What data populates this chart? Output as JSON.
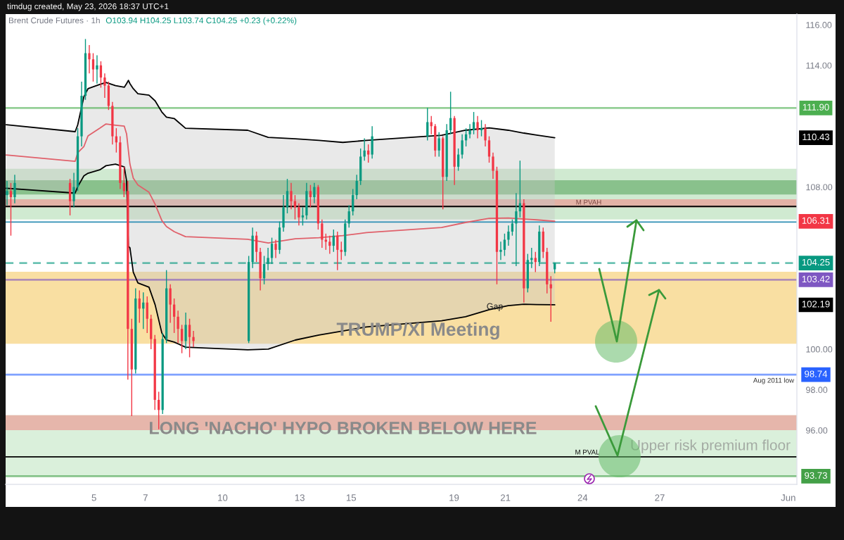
{
  "chart_data": {
    "type": "candlestick",
    "title": "Brent Crude Futures · 1h",
    "annotations": [
      "timdug created, May 23, 2026 18:37 UTC+1",
      "O103.94 H104.25 L103.74 C104.25 +0.23 (+0.22%)",
      "TRUMP/XI Meeting",
      {
        "text": "LONG 'NACHO' HYPO BROKEN BELOW HERE",
        "x": "2026-05-14T16:14",
        "y": 96.04
      },
      "Upper risk premium floor",
      {
        "text": "Gap",
        "x": "2026-05-20T14:05",
        "y": 102.08
      },
      "Aug 2011 low",
      "M PVAH",
      "M PVAL",
      "110.43",
      "106.31",
      "102.19"
    ],
    "x": [
      "2026-05-01T14:48",
      "2026-05-01T18:24",
      "2026-05-01T22:00",
      "2026-05-04T01:36",
      "2026-05-04T05:12",
      "2026-05-04T08:48",
      "2026-05-04T12:24",
      "2026-05-04T16:00",
      "2026-05-04T19:36",
      "2026-05-04T23:12",
      "2026-05-05T02:48",
      "2026-05-05T06:24",
      "2026-05-05T10:00",
      "2026-05-05T13:36",
      "2026-05-05T17:12",
      "2026-05-05T20:48",
      "2026-05-06T00:24",
      "2026-05-06T04:00",
      "2026-05-06T07:36",
      "2026-05-06T11:12",
      "2026-05-06T14:48",
      "2026-05-06T18:24",
      "2026-05-06T22:00",
      "2026-05-07T01:36",
      "2026-05-07T05:12",
      "2026-05-07T08:48",
      "2026-05-07T12:24",
      "2026-05-07T16:00",
      "2026-05-07T19:36",
      "2026-05-07T23:12",
      "2026-05-08T02:48",
      "2026-05-08T06:24",
      "2026-05-08T10:00",
      "2026-05-08T13:36",
      "2026-05-08T17:12",
      "2026-05-08T20:48",
      "2026-05-11T00:24",
      "2026-05-11T04:00",
      "2026-05-11T07:36",
      "2026-05-11T11:12",
      "2026-05-11T14:48",
      "2026-05-11T18:24",
      "2026-05-11T22:00",
      "2026-05-12T01:36",
      "2026-05-12T05:12",
      "2026-05-12T08:48",
      "2026-05-12T12:24",
      "2026-05-12T16:00",
      "2026-05-12T19:36",
      "2026-05-12T23:12",
      "2026-05-13T02:48",
      "2026-05-13T06:24",
      "2026-05-13T10:00",
      "2026-05-13T13:36",
      "2026-05-13T17:12",
      "2026-05-13T20:48",
      "2026-05-14T00:24",
      "2026-05-14T04:00",
      "2026-05-14T07:36",
      "2026-05-14T11:12",
      "2026-05-14T14:48",
      "2026-05-14T18:24",
      "2026-05-14T22:00",
      "2026-05-15T01:36",
      "2026-05-15T05:12",
      "2026-05-15T08:48",
      "2026-05-15T12:24",
      "2026-05-15T16:00",
      "2026-05-15T19:36",
      "2026-05-17T23:12",
      "2026-05-18T02:48",
      "2026-05-18T06:24",
      "2026-05-18T10:00",
      "2026-05-18T13:36",
      "2026-05-18T17:12",
      "2026-05-18T20:48",
      "2026-05-19T00:24",
      "2026-05-19T04:00",
      "2026-05-19T07:36",
      "2026-05-19T11:12",
      "2026-05-19T14:48",
      "2026-05-19T18:24",
      "2026-05-19T22:00",
      "2026-05-20T01:36",
      "2026-05-20T05:12",
      "2026-05-20T08:48",
      "2026-05-20T12:24",
      "2026-05-20T16:00",
      "2026-05-20T19:36",
      "2026-05-20T23:12",
      "2026-05-21T02:48",
      "2026-05-21T06:24",
      "2026-05-21T10:00",
      "2026-05-21T13:36",
      "2026-05-21T17:12",
      "2026-05-21T20:48",
      "2026-05-22T00:24",
      "2026-05-22T04:00",
      "2026-05-22T07:36",
      "2026-05-22T11:12",
      "2026-05-22T14:48",
      "2026-05-22T18:24",
      "2026-05-22T22:00"
    ],
    "ohlc": [
      [
        107.6,
        108.3,
        107.1,
        107.8
      ],
      [
        107.8,
        108.2,
        105.6,
        107.5
      ],
      [
        107.5,
        108.6,
        107.2,
        108.2
      ],
      [
        108.2,
        108.4,
        106.6,
        107.3
      ],
      [
        107.3,
        108.7,
        107.0,
        108.0
      ],
      [
        108.0,
        110.9,
        107.8,
        110.5
      ],
      [
        110.5,
        113.2,
        110.0,
        112.5
      ],
      [
        112.5,
        115.3,
        112.3,
        114.6
      ],
      [
        114.6,
        115.0,
        113.6,
        114.3
      ],
      [
        114.3,
        114.6,
        113.2,
        113.8
      ],
      [
        113.8,
        114.5,
        113.1,
        114.0
      ],
      [
        114.0,
        114.2,
        112.9,
        113.4
      ],
      [
        113.4,
        113.6,
        112.4,
        113.0
      ],
      [
        113.0,
        113.2,
        111.8,
        112.0
      ],
      [
        112.0,
        112.2,
        110.1,
        110.5
      ],
      [
        110.5,
        110.9,
        109.7,
        110.2
      ],
      [
        110.2,
        110.5,
        107.9,
        108.2
      ],
      [
        108.2,
        109.0,
        107.5,
        107.8
      ],
      [
        107.8,
        108.3,
        98.5,
        101.0
      ],
      [
        101.0,
        101.5,
        96.7,
        99.0
      ],
      [
        99.0,
        103.0,
        98.8,
        102.5
      ],
      [
        102.5,
        102.9,
        101.3,
        102.0
      ],
      [
        102.0,
        102.8,
        101.0,
        102.3
      ],
      [
        102.3,
        102.6,
        100.8,
        101.5
      ],
      [
        101.5,
        101.7,
        100.0,
        100.5
      ],
      [
        100.5,
        100.7,
        97.0,
        97.5
      ],
      [
        97.5,
        97.9,
        96.05,
        97.0
      ],
      [
        97.0,
        100.8,
        96.8,
        100.5
      ],
      [
        100.5,
        103.9,
        100.3,
        103.0
      ],
      [
        103.0,
        103.2,
        101.3,
        102.2
      ],
      [
        102.2,
        102.5,
        100.8,
        101.6
      ],
      [
        101.6,
        101.9,
        100.3,
        101.0
      ],
      [
        101.0,
        101.2,
        99.8,
        100.4
      ],
      [
        100.4,
        101.8,
        100.0,
        101.2
      ],
      [
        101.2,
        101.5,
        99.6,
        100.6
      ],
      [
        100.6,
        100.9,
        100.1,
        100.4
      ],
      [
        100.4,
        104.6,
        100.3,
        104.3
      ],
      [
        104.3,
        106.0,
        104.0,
        105.6
      ],
      [
        105.6,
        105.8,
        104.3,
        104.8
      ],
      [
        104.8,
        105.0,
        102.9,
        103.5
      ],
      [
        103.5,
        104.6,
        103.2,
        104.2
      ],
      [
        104.2,
        105.0,
        103.9,
        104.5
      ],
      [
        104.5,
        105.5,
        104.2,
        105.2
      ],
      [
        105.2,
        105.4,
        104.5,
        104.9
      ],
      [
        104.9,
        106.3,
        104.7,
        106.0
      ],
      [
        106.0,
        107.6,
        105.8,
        107.0
      ],
      [
        107.0,
        108.4,
        106.7,
        107.8
      ],
      [
        107.8,
        108.2,
        106.9,
        107.3
      ],
      [
        107.3,
        107.6,
        106.4,
        107.0
      ],
      [
        107.0,
        107.2,
        106.1,
        106.5
      ],
      [
        106.5,
        107.0,
        106.1,
        106.6
      ],
      [
        106.6,
        108.2,
        106.4,
        107.8
      ],
      [
        107.8,
        108.1,
        107.0,
        107.5
      ],
      [
        107.5,
        108.2,
        107.2,
        108.0
      ],
      [
        108.0,
        108.1,
        105.9,
        106.2
      ],
      [
        106.2,
        106.4,
        105.0,
        105.4
      ],
      [
        105.4,
        105.7,
        104.9,
        105.3
      ],
      [
        105.3,
        105.6,
        104.7,
        105.1
      ],
      [
        105.1,
        105.9,
        104.8,
        105.6
      ],
      [
        105.6,
        105.8,
        103.9,
        104.9
      ],
      [
        104.9,
        105.3,
        104.4,
        104.8
      ],
      [
        104.8,
        106.4,
        104.6,
        106.2
      ],
      [
        106.2,
        107.1,
        106.0,
        106.8
      ],
      [
        106.8,
        107.9,
        106.6,
        107.6
      ],
      [
        107.6,
        108.6,
        107.4,
        108.3
      ],
      [
        108.3,
        109.9,
        108.1,
        109.5
      ],
      [
        109.5,
        110.4,
        109.3,
        109.8
      ],
      [
        109.8,
        110.1,
        109.2,
        109.6
      ],
      [
        109.6,
        111.0,
        109.4,
        110.5
      ],
      [
        110.5,
        111.9,
        110.3,
        111.2
      ],
      [
        111.2,
        111.5,
        110.6,
        111.0
      ],
      [
        111.0,
        111.1,
        109.5,
        109.8
      ],
      [
        109.8,
        110.7,
        109.5,
        110.4
      ],
      [
        110.4,
        110.5,
        106.9,
        108.5
      ],
      [
        108.5,
        111.1,
        108.3,
        110.8
      ],
      [
        110.8,
        112.7,
        110.6,
        111.4
      ],
      [
        111.4,
        111.5,
        108.1,
        109.0
      ],
      [
        109.0,
        109.9,
        108.8,
        109.6
      ],
      [
        109.6,
        110.6,
        109.4,
        110.3
      ],
      [
        110.3,
        110.9,
        110.0,
        110.6
      ],
      [
        110.6,
        111.1,
        110.4,
        110.8
      ],
      [
        110.8,
        111.7,
        110.6,
        111.2
      ],
      [
        111.2,
        111.5,
        110.4,
        110.8
      ],
      [
        110.8,
        111.3,
        110.5,
        110.9
      ],
      [
        110.9,
        111.1,
        110.0,
        110.3
      ],
      [
        110.3,
        110.5,
        109.2,
        109.5
      ],
      [
        109.5,
        109.7,
        108.4,
        108.8
      ],
      [
        108.8,
        109.0,
        103.2,
        104.8
      ],
      [
        104.8,
        105.3,
        104.4,
        104.9
      ],
      [
        104.9,
        105.7,
        104.6,
        105.4
      ],
      [
        105.4,
        106.1,
        105.1,
        105.8
      ],
      [
        105.8,
        106.4,
        105.6,
        106.2
      ],
      [
        106.2,
        107.7,
        104.1,
        106.8
      ],
      [
        106.8,
        109.3,
        106.5,
        107.2
      ],
      [
        107.2,
        107.4,
        102.3,
        103.0
      ],
      [
        103.0,
        104.7,
        102.8,
        104.4
      ],
      [
        104.4,
        105.0,
        104.0,
        104.5
      ],
      [
        104.5,
        104.8,
        103.8,
        104.3
      ],
      [
        104.3,
        106.1,
        104.1,
        105.8
      ],
      [
        105.8,
        106.0,
        104.5,
        104.8
      ],
      [
        104.8,
        105.0,
        102.75,
        103.2
      ],
      [
        103.2,
        103.6,
        101.35,
        103.0
      ],
      [
        103.94,
        104.25,
        103.74,
        104.25
      ]
    ],
    "colors": [
      "#089981",
      "#f23645",
      "#089981",
      "#f23645",
      "#089981",
      "#089981",
      "#089981",
      "#089981",
      "#f23645",
      "#f23645",
      "#089981",
      "#f23645",
      "#f23645",
      "#f23645",
      "#f23645",
      "#f23645",
      "#f23645",
      "#f23645",
      "#f23645",
      "#f23645",
      "#089981",
      "#f23645",
      "#089981",
      "#f23645",
      "#f23645",
      "#f23645",
      "#f23645",
      "#089981",
      "#089981",
      "#f23645",
      "#f23645",
      "#f23645",
      "#f23645",
      "#089981",
      "#f23645",
      "#f23645",
      "#089981",
      "#089981",
      "#f23645",
      "#f23645",
      "#089981",
      "#089981",
      "#089981",
      "#f23645",
      "#089981",
      "#089981",
      "#089981",
      "#f23645",
      "#f23645",
      "#f23645",
      "#089981",
      "#089981",
      "#f23645",
      "#089981",
      "#f23645",
      "#f23645",
      "#f23645",
      "#f23645",
      "#089981",
      "#f23645",
      "#f23645",
      "#089981",
      "#089981",
      "#089981",
      "#089981",
      "#089981",
      "#089981",
      "#f23645",
      "#089981",
      "#089981",
      "#f23645",
      "#f23645",
      "#089981",
      "#f23645",
      "#089981",
      "#089981",
      "#f23645",
      "#089981",
      "#089981",
      "#089981",
      "#089981",
      "#089981",
      "#f23645",
      "#089981",
      "#f23645",
      "#f23645",
      "#f23645",
      "#f23645",
      "#089981",
      "#089981",
      "#089981",
      "#089981",
      "#089981",
      "#089981",
      "#f23645",
      "#089981",
      "#089981",
      "#f23645",
      "#089981",
      "#f23645",
      "#f23645",
      "#f23645",
      "#089981"
    ],
    "series": [
      {
        "type": "line",
        "color": "#000000",
        "x": [
          "2026-05-01T14:05",
          "2026-05-04T06:24",
          "2026-05-04T08:48",
          "2026-05-04T14:34",
          "2026-05-04T18:24",
          "2026-05-05T05:26",
          "2026-05-05T11:12",
          "2026-05-05T20:05",
          "2026-05-06T04:14",
          "2026-05-06T06:24",
          "2026-05-06T08:05",
          "2026-05-06T09:31",
          "2026-05-06T12:38",
          "2026-05-06T16:58",
          "2026-05-07T03:17",
          "2026-05-07T09:02",
          "2026-05-07T15:17",
          "2026-05-07T19:36",
          "2026-05-08T02:48",
          "2026-05-08T13:22",
          "2026-05-10T23:26",
          "2026-05-11T18:38",
          "2026-05-12T19:50",
          "2026-05-13T17:55",
          "2026-05-14T16:14",
          "2026-05-15T14:19",
          "2026-05-18T12:24",
          "2026-05-19T10:43",
          "2026-05-20T08:48",
          "2026-05-21T02:34",
          "2026-05-21T17:12",
          "2026-05-22T05:12",
          "2026-05-22T22:00"
        ],
        "values": [
          111.07,
          110.73,
          111.07,
          112.46,
          112.85,
          113.06,
          113.16,
          113.0,
          112.92,
          113.1,
          113.26,
          113.1,
          112.85,
          112.6,
          112.53,
          112.25,
          111.7,
          111.45,
          111.38,
          110.9,
          110.8,
          110.45,
          110.38,
          110.3,
          110.2,
          110.3,
          110.55,
          110.8,
          110.92,
          110.8,
          110.66,
          110.56,
          110.43
        ]
      },
      {
        "type": "line",
        "color": "#e0616b",
        "x": [
          "2026-05-01T14:05",
          "2026-05-04T06:24",
          "2026-05-04T08:48",
          "2026-05-04T14:34",
          "2026-05-04T18:24",
          "2026-05-05T05:26",
          "2026-05-05T11:12",
          "2026-05-05T20:05",
          "2026-05-06T04:14",
          "2026-05-06T06:24",
          "2026-05-06T08:05",
          "2026-05-06T09:31",
          "2026-05-06T12:38",
          "2026-05-06T16:58",
          "2026-05-07T03:17",
          "2026-05-07T09:02",
          "2026-05-07T15:17",
          "2026-05-07T19:36",
          "2026-05-08T02:48",
          "2026-05-08T13:22",
          "2026-05-10T23:26",
          "2026-05-11T18:38",
          "2026-05-12T19:50",
          "2026-05-13T17:55",
          "2026-05-14T16:14",
          "2026-05-15T14:19",
          "2026-05-18T12:24",
          "2026-05-19T10:43",
          "2026-05-20T08:48",
          "2026-05-21T02:34",
          "2026-05-21T17:12",
          "2026-05-22T05:12",
          "2026-05-22T22:00"
        ],
        "values": [
          109.58,
          109.27,
          109.69,
          110.0,
          110.52,
          110.9,
          111.11,
          111.05,
          111.0,
          110.62,
          109.8,
          109.13,
          108.44,
          108.1,
          107.74,
          107.15,
          106.35,
          106.05,
          105.8,
          105.55,
          105.42,
          105.24,
          105.45,
          105.5,
          105.6,
          105.75,
          106.0,
          106.25,
          106.45,
          106.47,
          106.42,
          106.38,
          106.31
        ],
        "lower": [
          107.94,
          107.7,
          108.02,
          108.55,
          108.68,
          108.85,
          109.05,
          109.13,
          108.99,
          108.3,
          105.07,
          105.0,
          103.8,
          103.27,
          103.06,
          102.19,
          100.8,
          100.45,
          100.35,
          100.1,
          99.97,
          100.0,
          100.45,
          100.7,
          100.9,
          101.1,
          101.4,
          101.6,
          101.95,
          102.15,
          102.22,
          102.2,
          102.19
        ],
        "upper": [
          111.07,
          110.73,
          111.07,
          112.46,
          112.85,
          113.06,
          113.16,
          113.0,
          112.92,
          113.1,
          113.26,
          113.1,
          112.85,
          112.6,
          112.53,
          112.25,
          111.7,
          111.45,
          111.38,
          110.9,
          110.8,
          110.45,
          110.38,
          110.3,
          110.2,
          110.3,
          110.55,
          110.8,
          110.92,
          110.8,
          110.66,
          110.56,
          110.43
        ]
      },
      {
        "type": "line",
        "color": "#000000",
        "x": [
          "2026-05-01T14:05",
          "2026-05-04T06:24",
          "2026-05-04T08:48",
          "2026-05-04T14:34",
          "2026-05-04T18:24",
          "2026-05-05T05:26",
          "2026-05-05T11:12",
          "2026-05-05T20:05",
          "2026-05-06T04:14",
          "2026-05-06T06:24",
          "2026-05-06T08:05",
          "2026-05-06T09:31",
          "2026-05-06T12:38",
          "2026-05-06T16:58",
          "2026-05-07T03:17",
          "2026-05-07T09:02",
          "2026-05-07T15:17",
          "2026-05-07T19:36",
          "2026-05-08T02:48",
          "2026-05-08T13:22",
          "2026-05-10T23:26",
          "2026-05-11T18:38",
          "2026-05-12T19:50",
          "2026-05-13T17:55",
          "2026-05-14T16:14",
          "2026-05-15T14:19",
          "2026-05-18T12:24",
          "2026-05-19T10:43",
          "2026-05-20T08:48",
          "2026-05-21T02:34",
          "2026-05-21T17:12",
          "2026-05-22T05:12",
          "2026-05-22T22:00"
        ],
        "values": [
          107.94,
          107.7,
          108.02,
          108.55,
          108.68,
          108.85,
          109.05,
          109.13,
          108.99,
          108.3,
          105.07,
          105.0,
          103.8,
          103.27,
          103.06,
          102.19,
          100.8,
          100.45,
          100.35,
          100.1,
          99.97,
          100.0,
          100.45,
          100.7,
          100.9,
          101.1,
          101.4,
          101.6,
          101.95,
          102.15,
          102.22,
          102.2,
          102.19
        ]
      }
    ],
    "xlim": [
      "2026-05-01T13:30",
      "2026-06-01T08:00"
    ],
    "xticks": [
      {
        "value": "2026-05-05",
        "label": "5"
      },
      {
        "value": "2026-05-07",
        "label": "7"
      },
      {
        "value": "2026-05-10",
        "label": "10"
      },
      {
        "value": "2026-05-13",
        "label": "13"
      },
      {
        "value": "2026-05-15",
        "label": "15"
      },
      {
        "value": "2026-05-19",
        "label": "19"
      },
      {
        "value": "2026-05-21",
        "label": "21"
      },
      {
        "value": "2026-05-24",
        "label": "24"
      },
      {
        "value": "2026-05-27",
        "label": "27"
      },
      {
        "value": "2026-06-01",
        "label": "Jun"
      }
    ],
    "ylim": [
      93.33,
      116.53
    ],
    "yticks": [
      {
        "value": 116,
        "label": "116.00"
      },
      {
        "value": 114,
        "label": "114.00"
      },
      {
        "value": 108,
        "label": "108.00"
      },
      {
        "value": 100,
        "label": "100.00"
      },
      {
        "value": 98,
        "label": "98.00"
      },
      {
        "value": 96,
        "label": "96.00"
      }
    ],
    "bands": [
      {
        "axis": "y",
        "from": 106.4,
        "to": 108.9,
        "color": "#c8e6c9"
      },
      {
        "axis": "y",
        "from": 107.63,
        "to": 108.33,
        "color": "#7dba80"
      },
      {
        "axis": "y",
        "from": 107.0,
        "to": 107.4,
        "color": "#e6a89f"
      },
      {
        "axis": "y",
        "from": 100.27,
        "to": 103.82,
        "color": "#f8d992"
      },
      {
        "axis": "y",
        "from": 93.73,
        "to": 96.74,
        "color": "#d4edd5"
      },
      {
        "axis": "y",
        "from": 96.0,
        "to": 96.74,
        "color": "#e8aba2"
      }
    ],
    "ref_lines": [
      {
        "axis": "y",
        "value": 111.9,
        "label": "111.90",
        "color": "#4caf50"
      },
      {
        "axis": "y",
        "value": 107.04,
        "color": "#000000"
      },
      {
        "axis": "y",
        "value": 106.27,
        "color": "#2f8fb5"
      },
      {
        "axis": "y",
        "value": 104.25,
        "label": "104.25",
        "color": "#089981",
        "line_style": "dashed"
      },
      {
        "axis": "y",
        "value": 103.42,
        "label": "103.42",
        "color": "#7e57c2"
      },
      {
        "axis": "y",
        "value": 98.74,
        "label": "98.74",
        "color": "#2962ff"
      },
      {
        "axis": "y",
        "value": 94.69,
        "color": "#000000"
      },
      {
        "axis": "y",
        "value": 93.73,
        "label": "93.73",
        "color": "#43a047"
      }
    ]
  }
}
